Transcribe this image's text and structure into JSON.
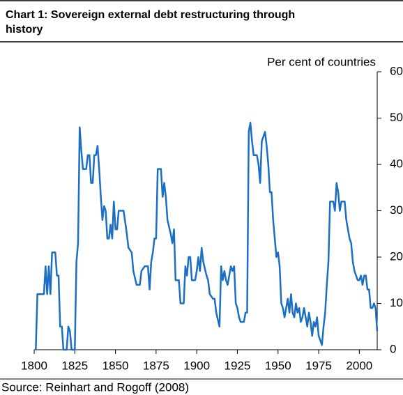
{
  "chart_data": {
    "type": "line",
    "title_lines": [
      "Chart 1: Sovereign external debt restructuring through",
      "history"
    ],
    "y_label": "Per cent of countries",
    "source": "Source: Reinhart and Rogoff (2008)",
    "color": "#1a6fc4",
    "xlim": [
      1800,
      2011
    ],
    "xticks": [
      1800,
      1825,
      1850,
      1875,
      1900,
      1925,
      1950,
      1975,
      2000
    ],
    "ylim": [
      0,
      60
    ],
    "yticks": [
      0,
      10,
      20,
      30,
      40,
      50,
      60
    ],
    "y_axis_side": "right",
    "x": [
      1801,
      1802,
      1806,
      1807,
      1808,
      1809,
      1810,
      1811,
      1813,
      1814,
      1815,
      1816,
      1817,
      1818,
      1820,
      1821,
      1822,
      1823,
      1825,
      1826,
      1827,
      1828,
      1829,
      1830,
      1832,
      1833,
      1834,
      1835,
      1836,
      1837,
      1838,
      1839,
      1840,
      1841,
      1842,
      1843,
      1844,
      1845,
      1846,
      1847,
      1848,
      1849,
      1850,
      1851,
      1852,
      1855,
      1857,
      1858,
      1860,
      1861,
      1863,
      1865,
      1866,
      1868,
      1870,
      1871,
      1872,
      1873,
      1874,
      1875,
      1876,
      1878,
      1879,
      1880,
      1881,
      1882,
      1884,
      1885,
      1886,
      1887,
      1889,
      1890,
      1892,
      1893,
      1894,
      1895,
      1896,
      1897,
      1899,
      1900,
      1901,
      1902,
      1903,
      1904,
      1906,
      1907,
      1908,
      1910,
      1911,
      1912,
      1914,
      1915,
      1916,
      1917,
      1918,
      1919,
      1921,
      1922,
      1923,
      1924,
      1925,
      1926,
      1927,
      1929,
      1930,
      1931,
      1932,
      1933,
      1934,
      1935,
      1937,
      1938,
      1939,
      1940,
      1942,
      1943,
      1944,
      1945,
      1946,
      1947,
      1948,
      1949,
      1950,
      1951,
      1952,
      1953,
      1954,
      1956,
      1957,
      1958,
      1959,
      1960,
      1961,
      1962,
      1963,
      1964,
      1965,
      1966,
      1967,
      1968,
      1969,
      1970,
      1971,
      1972,
      1973,
      1974,
      1975,
      1977,
      1978,
      1979,
      1980,
      1981,
      1982,
      1984,
      1985,
      1986,
      1987,
      1988,
      1989,
      1991,
      1992,
      1993,
      1994,
      1995,
      1996,
      1997,
      1999,
      2000,
      2001,
      2002,
      2003,
      2004,
      2005,
      2006,
      2007,
      2008,
      2009,
      2010,
      2011
    ],
    "values": [
      0,
      12,
      12,
      18,
      12,
      18,
      12,
      21,
      21,
      16,
      16,
      5,
      5,
      0,
      0,
      5,
      4,
      0,
      0,
      19,
      23,
      48,
      43,
      39,
      39,
      42,
      42,
      36,
      36,
      42,
      42,
      44,
      39,
      33,
      28,
      31,
      30,
      24,
      24,
      27,
      24,
      32,
      26,
      26,
      30,
      30,
      25,
      22,
      21,
      17,
      14,
      14,
      17,
      18,
      18,
      13,
      19,
      21,
      24,
      24,
      39,
      39,
      33,
      36,
      33,
      28,
      25,
      23,
      26,
      15,
      15,
      10,
      10,
      18,
      16,
      20,
      20,
      15,
      15,
      17,
      20,
      17,
      22,
      19,
      16,
      15,
      12,
      11,
      11,
      8,
      5,
      18,
      15,
      17,
      15,
      14,
      18,
      17,
      18,
      10,
      9,
      7,
      6,
      6,
      8,
      8,
      47,
      49,
      45,
      42,
      42,
      40,
      36,
      45,
      47,
      44,
      40,
      34,
      34,
      28,
      24,
      20,
      21,
      18,
      10,
      9,
      7,
      11,
      8,
      12,
      8,
      7,
      10,
      8,
      9,
      6,
      7,
      9,
      7,
      5,
      8,
      6,
      3,
      6,
      5,
      7,
      3,
      1,
      5,
      8,
      14,
      19,
      32,
      32,
      30,
      36,
      34,
      30,
      32,
      32,
      28,
      26,
      24,
      23,
      19,
      17,
      15,
      15,
      16,
      14,
      16,
      16,
      13,
      13,
      9,
      9,
      10,
      9,
      4
    ]
  }
}
